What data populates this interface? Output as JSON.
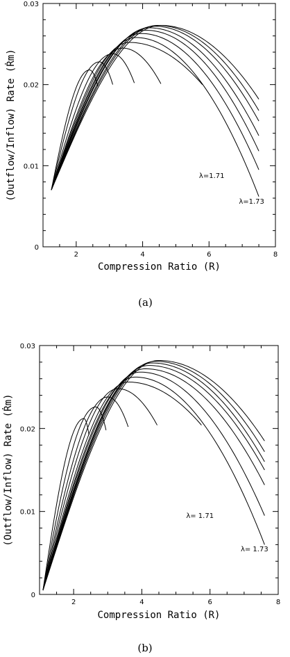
{
  "chart_data": [
    {
      "type": "line",
      "panel_label": "(a)",
      "xlabel": "Compression Ratio (R)",
      "ylabel": "(Outflow/Inflow) Rate (Ṙm)",
      "xlim": [
        1,
        8
      ],
      "ylim": [
        0,
        0.03
      ],
      "x_ticks": [
        2,
        4,
        6,
        8
      ],
      "y_ticks": [
        0,
        0.01,
        0.02,
        0.03
      ],
      "y_tick_labels": [
        "0",
        "0.01",
        "0.02",
        "0.03"
      ],
      "annotations": [
        {
          "text": "λ=1.71",
          "x": 5.7,
          "y": 0.0085
        },
        {
          "text": "λ=1.73",
          "x": 6.9,
          "y": 0.0053
        }
      ],
      "curves": [
        {
          "x_end": 2.65,
          "y_peak": 0.0218,
          "x_peak": 2.4
        },
        {
          "x_end": 3.1,
          "y_peak": 0.0228,
          "x_peak": 2.7
        },
        {
          "x_end": 3.75,
          "y_peak": 0.0238,
          "x_peak": 3.1
        },
        {
          "x_end": 4.55,
          "y_peak": 0.0245,
          "x_peak": 3.4
        },
        {
          "x_end": 5.8,
          "y_peak": 0.0252,
          "x_peak": 3.6
        },
        {
          "x_end": 7.5,
          "y_peak": 0.0258,
          "y_end": 0.0062,
          "x_peak": 3.8
        },
        {
          "x_end": 7.5,
          "y_peak": 0.0263,
          "y_end": 0.0095,
          "x_peak": 3.95
        },
        {
          "x_end": 7.5,
          "y_peak": 0.0267,
          "y_end": 0.0118,
          "x_peak": 4.1
        },
        {
          "x_end": 7.5,
          "y_peak": 0.027,
          "y_end": 0.0137,
          "x_peak": 4.2
        },
        {
          "x_end": 7.5,
          "y_peak": 0.0272,
          "y_end": 0.0155,
          "x_peak": 4.35
        },
        {
          "x_end": 7.5,
          "y_peak": 0.0273,
          "y_end": 0.0168,
          "x_peak": 4.45
        },
        {
          "x_end": 7.5,
          "y_peak": 0.0273,
          "y_end": 0.0182,
          "x_peak": 4.55
        }
      ]
    },
    {
      "type": "line",
      "panel_label": "(b)",
      "xlabel": "Compression Ratio (R)",
      "ylabel": "(Outflow/Inflow) Rate (Ṙm)",
      "xlim": [
        1,
        8
      ],
      "ylim": [
        0,
        0.03
      ],
      "x_ticks": [
        2,
        4,
        6,
        8
      ],
      "y_ticks": [
        0,
        0.01,
        0.02,
        0.03
      ],
      "y_tick_labels": [
        "0",
        "0.01",
        "0.02",
        "0.03"
      ],
      "annotations": [
        {
          "text": "λ= 1.71",
          "x": 5.3,
          "y": 0.0092
        },
        {
          "text": "λ= 1.73",
          "x": 6.9,
          "y": 0.0052
        }
      ],
      "curves": [
        {
          "x_end": 2.45,
          "y_peak": 0.0212,
          "x_peak": 2.3
        },
        {
          "x_end": 2.95,
          "y_peak": 0.0226,
          "x_peak": 2.65
        },
        {
          "x_end": 3.6,
          "y_peak": 0.0238,
          "x_peak": 3.0
        },
        {
          "x_end": 4.45,
          "y_peak": 0.0248,
          "x_peak": 3.3
        },
        {
          "x_end": 5.75,
          "y_peak": 0.0256,
          "x_peak": 3.6
        },
        {
          "x_end": 7.6,
          "y_peak": 0.0262,
          "y_end": 0.006,
          "x_peak": 3.8
        },
        {
          "x_end": 7.6,
          "y_peak": 0.0268,
          "y_end": 0.0095,
          "x_peak": 3.95
        },
        {
          "x_end": 7.6,
          "y_peak": 0.0272,
          "y_end": 0.0132,
          "x_peak": 4.1
        },
        {
          "x_end": 7.6,
          "y_peak": 0.0276,
          "y_end": 0.015,
          "x_peak": 4.2
        },
        {
          "x_end": 7.6,
          "y_peak": 0.0279,
          "y_end": 0.016,
          "x_peak": 4.3
        },
        {
          "x_end": 7.6,
          "y_peak": 0.0281,
          "y_end": 0.0172,
          "x_peak": 4.4
        },
        {
          "x_end": 7.6,
          "y_peak": 0.0282,
          "y_end": 0.0185,
          "x_peak": 4.5
        }
      ]
    }
  ]
}
